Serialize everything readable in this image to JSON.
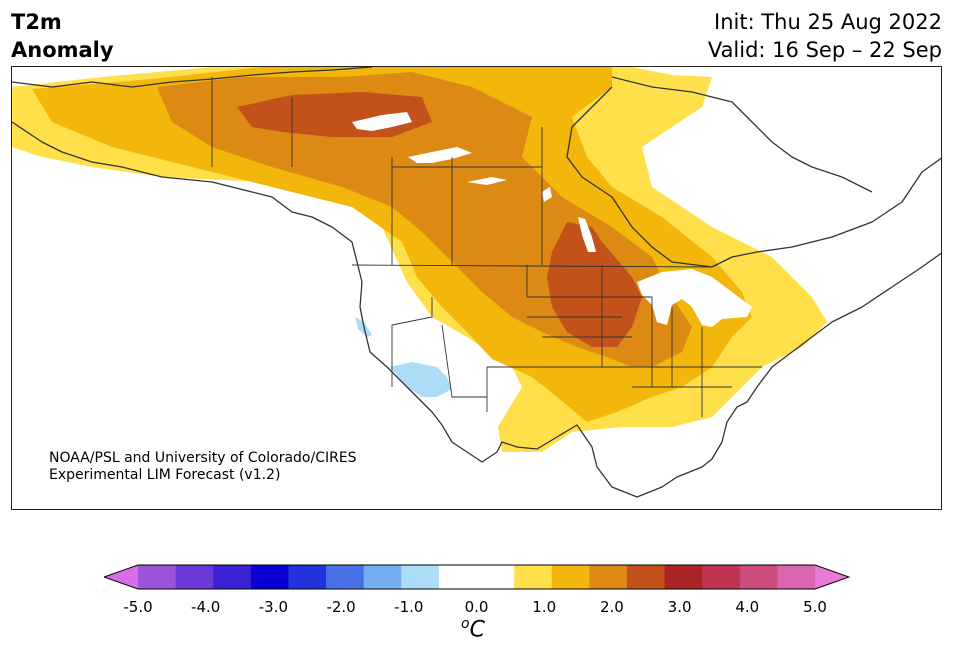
{
  "title": {
    "line1": "T2m",
    "line2": "Anomaly"
  },
  "init": "Init: Thu 25 Aug 2022",
  "valid": "Valid: 16 Sep – 22 Sep",
  "credit": {
    "line1": "NOAA/PSL and University of Colorado/CIRES",
    "line2": "Experimental LIM Forecast (v1.2)"
  },
  "colorbar": {
    "ticks": [
      "-5.0",
      "-4.0",
      "-3.0",
      "-2.0",
      "-1.0",
      "0.0",
      "1.0",
      "2.0",
      "3.0",
      "4.0",
      "5.0"
    ],
    "units_base": "C",
    "units_sup": "o",
    "colors": [
      "#d66fe6",
      "#9b55d9",
      "#6a3ad6",
      "#3a22d4",
      "#0a00d4",
      "#2233dc",
      "#4a70e6",
      "#74aef2",
      "#addcf7",
      "#ffffff",
      "#ffffff",
      "#ffe04a",
      "#f2b70a",
      "#dc8a14",
      "#c2521a",
      "#aa2525",
      "#be3451",
      "#cc4d7e",
      "#d865ad",
      "#e97ad8"
    ]
  },
  "map": {
    "region": "North America",
    "colors": {
      "light_yellow": "#ffe04a",
      "yellow": "#f2b70a",
      "orange": "#dc8a14",
      "dark_orange": "#c2521a",
      "light_blue": "#addcf7"
    }
  }
}
